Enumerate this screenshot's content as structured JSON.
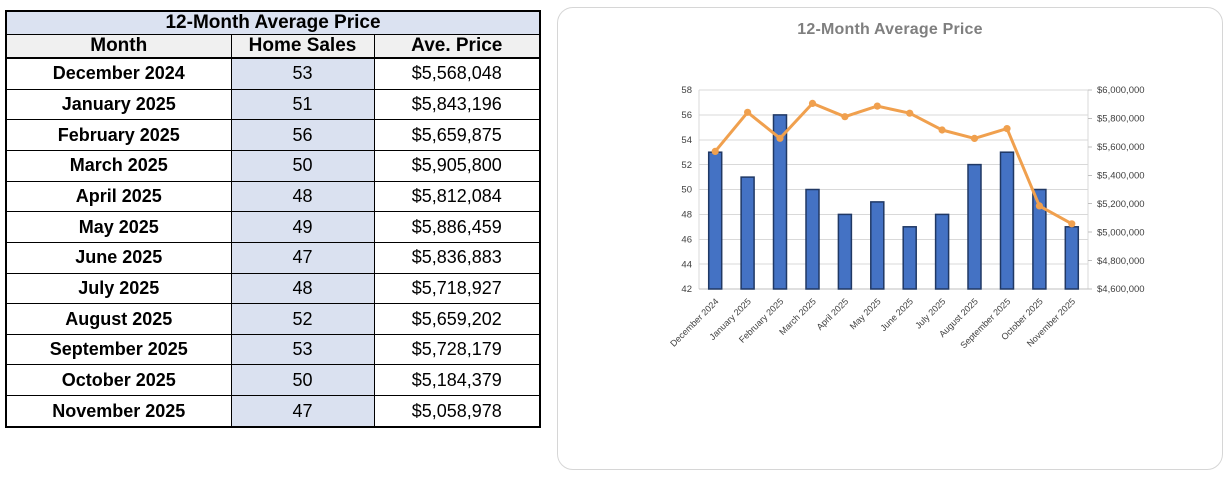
{
  "page": {
    "background": "#FFFFFF"
  },
  "table": {
    "title": "12-Month Average Price",
    "columns": [
      "Month",
      "Home Sales",
      "Ave. Price"
    ],
    "rows": [
      [
        "December 2024",
        "53",
        "$5,568,048"
      ],
      [
        "January 2025",
        "51",
        "$5,843,196"
      ],
      [
        "February 2025",
        "56",
        "$5,659,875"
      ],
      [
        "March 2025",
        "50",
        "$5,905,800"
      ],
      [
        "April 2025",
        "48",
        "$5,812,084"
      ],
      [
        "May 2025",
        "49",
        "$5,886,459"
      ],
      [
        "June 2025",
        "47",
        "$5,836,883"
      ],
      [
        "July 2025",
        "48",
        "$5,718,927"
      ],
      [
        "August 2025",
        "52",
        "$5,659,202"
      ],
      [
        "September 2025",
        "53",
        "$5,728,179"
      ],
      [
        "October 2025",
        "50",
        "$5,184,379"
      ],
      [
        "November 2025",
        "47",
        "$5,058,978"
      ]
    ],
    "colors": {
      "title_bg": "#DBE2F1",
      "header_bg": "#F0F0F0",
      "sales_col_bg": "#DAE1F0",
      "border": "#000000"
    }
  },
  "chart_data": {
    "type": "bar",
    "title": "12-Month Average Price",
    "categories": [
      "December 2024",
      "January 2025",
      "February 2025",
      "March 2025",
      "April 2025",
      "May 2025",
      "June 2025",
      "July 2025",
      "August 2025",
      "September 2025",
      "October 2025",
      "November 2025"
    ],
    "series": [
      {
        "name": "Home Sales",
        "type": "bar",
        "axis": "left",
        "values": [
          53,
          51,
          56,
          50,
          48,
          49,
          47,
          48,
          52,
          53,
          50,
          47
        ],
        "fill": "#4472C4",
        "stroke": "#203864"
      },
      {
        "name": "Ave. Price",
        "type": "line",
        "axis": "right",
        "values": [
          5568048,
          5843196,
          5659875,
          5905800,
          5812084,
          5886459,
          5836883,
          5718927,
          5659202,
          5728179,
          5184379,
          5058978
        ],
        "color": "#F0A04E"
      }
    ],
    "left_axis": {
      "min": 42,
      "max": 58,
      "step": 2
    },
    "right_axis": {
      "min": 4600000,
      "max": 6000000,
      "step": 200000,
      "prefix": "$"
    },
    "grid": true,
    "legend": "none",
    "colors": {
      "title": "#7F7F7F",
      "grid": "#D9D9D9",
      "axis_line": "#BFBFBF",
      "axis_text": "#404040"
    }
  }
}
